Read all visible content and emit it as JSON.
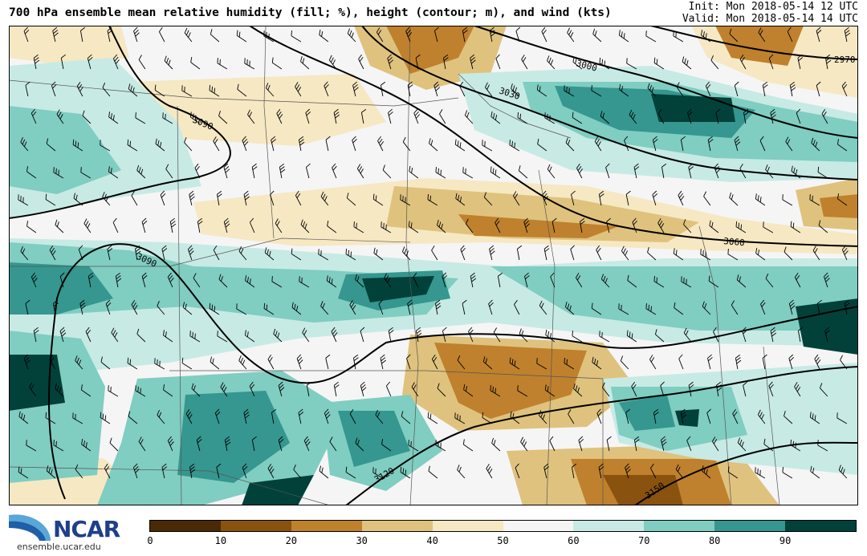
{
  "header": {
    "title": "700 hPa ensemble mean relative humidity (fill; %), height (contour; m), and wind (kts)",
    "init": "Init: Mon 2018-05-14 12 UTC",
    "valid": "Valid: Mon 2018-05-14 14 UTC"
  },
  "map": {
    "contour_labels": [
      "2970",
      "3000",
      "3030",
      "3060",
      "3090",
      "3090",
      "3090",
      "3120",
      "3150"
    ],
    "fill_variable": "relative humidity (%)",
    "contour_variable": "geopotential height (m)",
    "vector_variable": "wind barbs (kts)"
  },
  "colorbar": {
    "ticks": [
      "0",
      "10",
      "20",
      "30",
      "40",
      "50",
      "60",
      "70",
      "80",
      "90"
    ],
    "colors": [
      "#4a2a06",
      "#8a520f",
      "#bf812d",
      "#dfc27d",
      "#f6e8c3",
      "#f5f5f5",
      "#c7eae5",
      "#80cdc1",
      "#35978f",
      "#01413a"
    ]
  },
  "logo": {
    "text": "NCAR",
    "url": "ensemble.ucar.edu"
  }
}
